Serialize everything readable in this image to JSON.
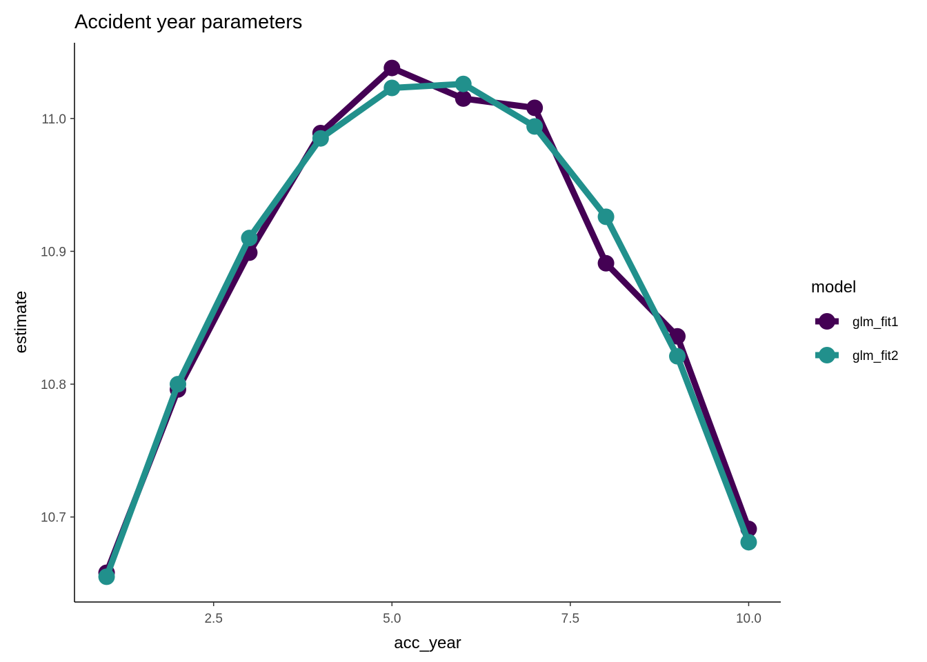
{
  "chart_data": {
    "type": "line",
    "title": "Accident year parameters",
    "xlabel": "acc_year",
    "ylabel": "estimate",
    "xlim": [
      0.55,
      10.45
    ],
    "ylim": [
      10.636,
      11.057
    ],
    "x_ticks": [
      2.5,
      5.0,
      7.5,
      10.0
    ],
    "x_tick_labels": [
      "2.5",
      "5.0",
      "7.5",
      "10.0"
    ],
    "y_ticks": [
      10.7,
      10.8,
      10.9,
      11.0
    ],
    "y_tick_labels": [
      "10.7",
      "10.8",
      "10.9",
      "11.0"
    ],
    "grid": false,
    "legend_title": "model",
    "legend_position": "right",
    "x": [
      1,
      2,
      3,
      4,
      5,
      6,
      7,
      8,
      9,
      10
    ],
    "series": [
      {
        "name": "glm_fit1",
        "color": "#440154",
        "values": [
          10.658,
          10.796,
          10.899,
          10.989,
          11.038,
          11.015,
          11.008,
          10.891,
          10.836,
          10.691
        ]
      },
      {
        "name": "glm_fit2",
        "color": "#21908C",
        "values": [
          10.655,
          10.8,
          10.91,
          10.985,
          11.023,
          11.026,
          10.994,
          10.926,
          10.821,
          10.681
        ]
      }
    ]
  }
}
